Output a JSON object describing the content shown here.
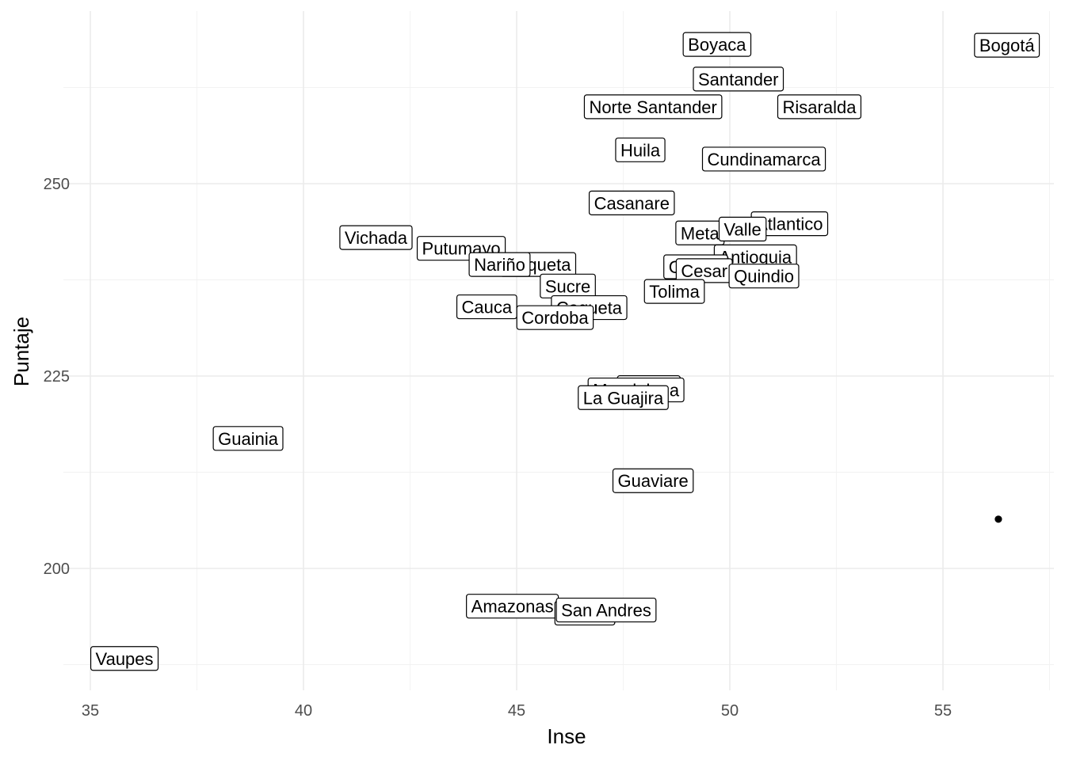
{
  "chart_data": {
    "type": "scatter",
    "xlabel": "Inse",
    "ylabel": "Puntaje",
    "xlim": [
      35,
      57.5
    ],
    "ylim": [
      188,
      270
    ],
    "x_ticks": [
      35,
      40,
      45,
      50,
      55
    ],
    "y_ticks": [
      200,
      225,
      250
    ],
    "grid": true,
    "colors": {
      "point": "#000000",
      "grid_major": "#ebebeb",
      "grid_minor": "#f2f2f2",
      "axis_text": "#4d4d4d"
    },
    "points": [
      {
        "label": "Bogotá",
        "x": 56.5,
        "y": 268.2
      },
      {
        "label": "Boyaca",
        "x": 49.7,
        "y": 268.3
      },
      {
        "label": "Santander",
        "x": 50.2,
        "y": 263.8
      },
      {
        "label": "Norte Santander",
        "x": 48.2,
        "y": 260.2
      },
      {
        "label": "Risaralda",
        "x": 52.1,
        "y": 260.2
      },
      {
        "label": "Huila",
        "x": 47.9,
        "y": 254.6
      },
      {
        "label": "Cundinamarca",
        "x": 50.8,
        "y": 253.4
      },
      {
        "label": "Casanare",
        "x": 47.7,
        "y": 247.7
      },
      {
        "label": "Atlantico",
        "x": 51.4,
        "y": 245.0
      },
      {
        "label": "Meta",
        "x": 49.3,
        "y": 243.8
      },
      {
        "label": "Valle",
        "x": 50.3,
        "y": 244.3
      },
      {
        "label": "Vichada",
        "x": 41.7,
        "y": 243.2
      },
      {
        "label": "Putumayo",
        "x": 43.7,
        "y": 241.8
      },
      {
        "label": "Antioquia",
        "x": 50.6,
        "y": 240.7
      },
      {
        "label": "Caqueta",
        "x": 45.5,
        "y": 239.7
      },
      {
        "label": "Nariño",
        "x": 44.6,
        "y": 239.7
      },
      {
        "label": "Caldas",
        "x": 49.2,
        "y": 239.4
      },
      {
        "label": "Cesar",
        "x": 49.4,
        "y": 238.9
      },
      {
        "label": "Quindio",
        "x": 50.8,
        "y": 238.2
      },
      {
        "label": "Sucre",
        "x": 46.2,
        "y": 236.9
      },
      {
        "label": "Tolima",
        "x": 48.7,
        "y": 236.2
      },
      {
        "label": "Cauca",
        "x": 44.3,
        "y": 234.2
      },
      {
        "label": "Caqueta",
        "x": 46.7,
        "y": 234.1
      },
      {
        "label": "Cordoba",
        "x": 45.9,
        "y": 232.8
      },
      {
        "label": "Bolivar",
        "x": 48.1,
        "y": 223.7
      },
      {
        "label": "Magdalena",
        "x": 47.8,
        "y": 223.4
      },
      {
        "label": "La Guajira",
        "x": 47.5,
        "y": 222.4
      },
      {
        "label": "Guainia",
        "x": 38.7,
        "y": 217.1
      },
      {
        "label": "Guaviare",
        "x": 48.2,
        "y": 211.6
      },
      {
        "label": "",
        "x": 56.3,
        "y": 206.4
      },
      {
        "label": "Amazonas",
        "x": 44.9,
        "y": 195.3
      },
      {
        "label": "Choco",
        "x": 46.6,
        "y": 194.4
      },
      {
        "label": "San Andres",
        "x": 47.1,
        "y": 194.8
      },
      {
        "label": "Vaupes",
        "x": 35.8,
        "y": 188.5
      }
    ]
  }
}
